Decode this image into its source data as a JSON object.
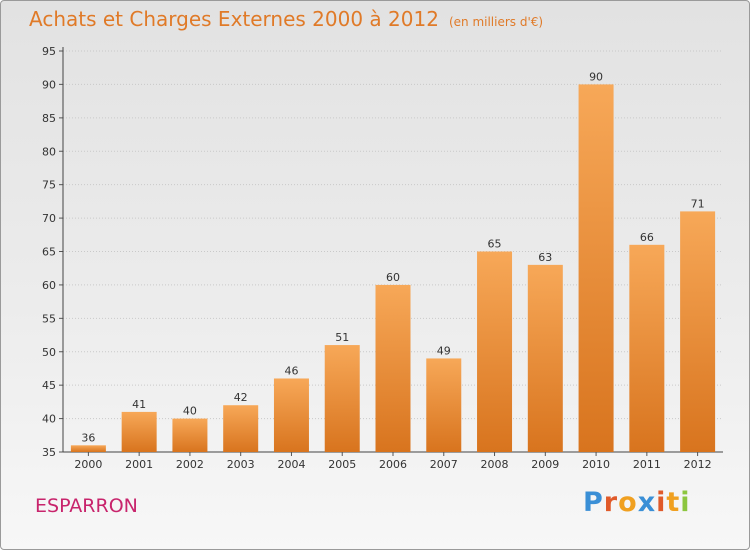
{
  "page": {
    "title": "Achats et Charges Externes 2000 à 2012",
    "title_unit": "(en milliers d'€)",
    "place": "ESPARRON",
    "logo": "Proxiti"
  },
  "colors": {
    "title": "#e07a28",
    "place": "#c8246c",
    "bar_top": "#f7a858",
    "bar_bottom": "#d8741e",
    "logo_letters": [
      "#3a8fd6",
      "#e05a2a",
      "#f0a020",
      "#3a8fd6",
      "#e05a2a",
      "#f0a020",
      "#8cc63f"
    ]
  },
  "chart_data": {
    "type": "bar",
    "title": "Achats et Charges Externes 2000 à 2012",
    "subtitle": "(en milliers d'€)",
    "categories": [
      "2000",
      "2001",
      "2002",
      "2003",
      "2004",
      "2005",
      "2006",
      "2007",
      "2008",
      "2009",
      "2010",
      "2011",
      "2012"
    ],
    "values": [
      36,
      41,
      40,
      42,
      46,
      51,
      60,
      49,
      65,
      63,
      90,
      66,
      71
    ],
    "xlabel": "",
    "ylabel": "",
    "ylim": [
      35,
      95
    ],
    "yticks": [
      35,
      40,
      45,
      50,
      55,
      60,
      65,
      70,
      75,
      80,
      85,
      90,
      95
    ],
    "grid": true,
    "legend": "none"
  }
}
